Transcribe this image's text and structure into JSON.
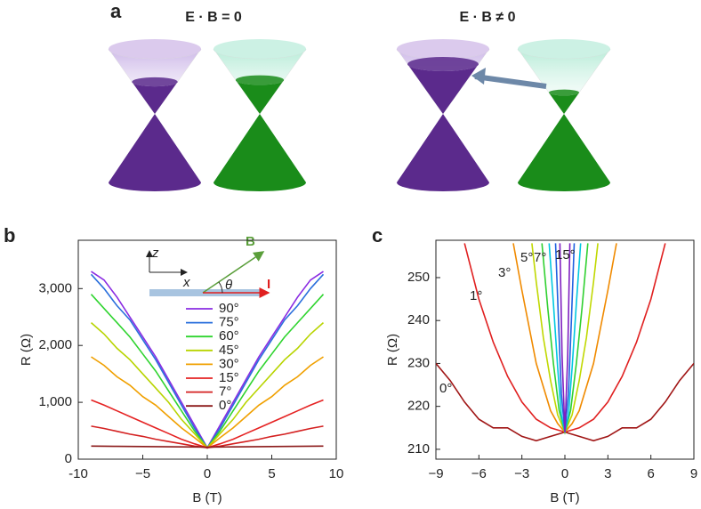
{
  "panel_labels": [
    "a",
    "b",
    "c"
  ],
  "diagram": {
    "left_title": "E · B = 0",
    "right_title": "E · B ≠ 0"
  },
  "chart_data": [
    {
      "type": "line",
      "xlabel": "B (T)",
      "ylabel": "R (Ω)",
      "xlim": [
        -10,
        10
      ],
      "ylim": [
        0,
        3850
      ],
      "xticks": [
        -10,
        {
          "value": -5,
          "label": "−5"
        },
        0,
        5,
        10
      ],
      "yticks": [
        0,
        {
          "value": 1000,
          "label": "1,000"
        },
        {
          "value": 2000,
          "label": "2,000"
        },
        {
          "value": 3000,
          "label": "3,000"
        }
      ],
      "inset": {
        "z": "z",
        "x": "x",
        "B": "B",
        "theta": "θ",
        "I": "I"
      },
      "x": [
        -9,
        -8,
        -7,
        -6,
        -5,
        -4,
        -3,
        -2,
        -1,
        0,
        1,
        2,
        3,
        4,
        5,
        6,
        7,
        8,
        9
      ],
      "series": [
        {
          "name": "90°",
          "color": "#8a2be2",
          "values": [
            3300,
            3150,
            2850,
            2500,
            2150,
            1800,
            1400,
            1000,
            600,
            200,
            600,
            1000,
            1400,
            1800,
            2150,
            2500,
            2850,
            3150,
            3300
          ]
        },
        {
          "name": "75°",
          "color": "#2a6fdc",
          "values": [
            3250,
            3000,
            2700,
            2450,
            2100,
            1750,
            1350,
            950,
            550,
            200,
            550,
            950,
            1350,
            1750,
            2100,
            2450,
            2700,
            3000,
            3250
          ]
        },
        {
          "name": "60°",
          "color": "#2fd42f",
          "values": [
            2900,
            2650,
            2400,
            2150,
            1850,
            1550,
            1200,
            850,
            500,
            200,
            500,
            850,
            1200,
            1550,
            1850,
            2150,
            2400,
            2650,
            2900
          ]
        },
        {
          "name": "45°",
          "color": "#b8d400",
          "values": [
            2400,
            2200,
            1950,
            1750,
            1500,
            1250,
            1000,
            700,
            450,
            200,
            450,
            700,
            1000,
            1250,
            1500,
            1750,
            1950,
            2200,
            2400
          ]
        },
        {
          "name": "30°",
          "color": "#f0a000",
          "values": [
            1800,
            1650,
            1450,
            1300,
            1100,
            950,
            750,
            550,
            380,
            200,
            380,
            550,
            750,
            950,
            1100,
            1300,
            1450,
            1650,
            1800
          ]
        },
        {
          "name": "15°",
          "color": "#e52222",
          "values": [
            1040,
            950,
            850,
            750,
            650,
            550,
            450,
            350,
            270,
            200,
            270,
            350,
            450,
            550,
            650,
            750,
            850,
            950,
            1040
          ]
        },
        {
          "name": "7°",
          "color": "#d42020",
          "values": [
            580,
            540,
            490,
            440,
            400,
            350,
            310,
            270,
            230,
            200,
            230,
            270,
            310,
            350,
            400,
            440,
            490,
            540,
            580
          ]
        },
        {
          "name": "0°",
          "color": "#8b1a1a",
          "values": [
            230,
            228,
            226,
            224,
            222,
            220,
            218,
            216,
            214,
            212,
            214,
            216,
            218,
            220,
            222,
            224,
            226,
            228,
            230
          ]
        }
      ]
    },
    {
      "type": "line",
      "xlabel": "B (T)",
      "ylabel": "R (Ω)",
      "xlim": [
        -9,
        9
      ],
      "ylim": [
        207.7,
        258.7
      ],
      "xticks": [
        {
          "value": -9,
          "label": "−9"
        },
        {
          "value": -6,
          "label": "−6"
        },
        {
          "value": -3,
          "label": "−3"
        },
        0,
        3,
        6,
        9
      ],
      "yticks": [
        210,
        220,
        230,
        240,
        250
      ],
      "series": [
        {
          "name": "0°",
          "color": "#a01515",
          "x": [
            -9,
            -8,
            -7,
            -6,
            -5,
            -4,
            -3,
            -2,
            -1,
            0,
            1,
            2,
            3,
            4,
            5,
            6,
            7,
            8,
            9
          ],
          "values": [
            230,
            226,
            221,
            217,
            215,
            215,
            213,
            212,
            213,
            214,
            213,
            212,
            213,
            215,
            215,
            217,
            221,
            226,
            230
          ]
        },
        {
          "name": "1°",
          "color": "#e02020",
          "x": [
            -7,
            -6,
            -5,
            -4,
            -3,
            -2,
            -1,
            0,
            1,
            2,
            3,
            4,
            5,
            6,
            7
          ],
          "values": [
            258,
            245,
            235,
            227,
            221,
            217,
            215,
            214,
            215,
            217,
            221,
            227,
            235,
            245,
            258
          ]
        },
        {
          "name": "3°",
          "color": "#f08a00",
          "x": [
            -3.6,
            -3,
            -2,
            -1,
            -0.5,
            0,
            0.5,
            1,
            2,
            3,
            3.6
          ],
          "values": [
            258,
            247,
            230,
            219,
            216,
            214,
            216,
            219,
            230,
            247,
            258
          ]
        },
        {
          "name": "5°",
          "color": "#c0d800",
          "x": [
            -2.3,
            -2,
            -1.5,
            -1,
            -0.5,
            0,
            0.5,
            1,
            1.5,
            2,
            2.3
          ],
          "values": [
            258,
            249,
            236,
            226,
            218,
            214,
            218,
            226,
            236,
            249,
            258
          ]
        },
        {
          "name": "7°",
          "color": "#30d030",
          "x": [
            -1.6,
            -1.2,
            -0.8,
            -0.4,
            0,
            0.4,
            0.8,
            1.2,
            1.6
          ],
          "values": [
            258,
            243,
            230,
            219,
            214,
            219,
            230,
            243,
            258
          ]
        },
        {
          "color": "#00c8e0",
          "x": [
            -1.1,
            -0.8,
            -0.5,
            -0.25,
            0,
            0.25,
            0.5,
            0.8,
            1.1
          ],
          "values": [
            258,
            244,
            229,
            218,
            214,
            218,
            229,
            244,
            258
          ]
        },
        {
          "color": "#2060e0",
          "x": [
            -0.65,
            -0.45,
            -0.25,
            0,
            0.25,
            0.45,
            0.65
          ],
          "values": [
            258,
            240,
            223,
            214,
            223,
            240,
            258
          ]
        },
        {
          "name": "15°",
          "color": "#8020c0",
          "x": [
            -0.35,
            -0.2,
            0,
            0.2,
            0.35
          ],
          "values": [
            258,
            232,
            214,
            232,
            258
          ]
        }
      ]
    }
  ]
}
